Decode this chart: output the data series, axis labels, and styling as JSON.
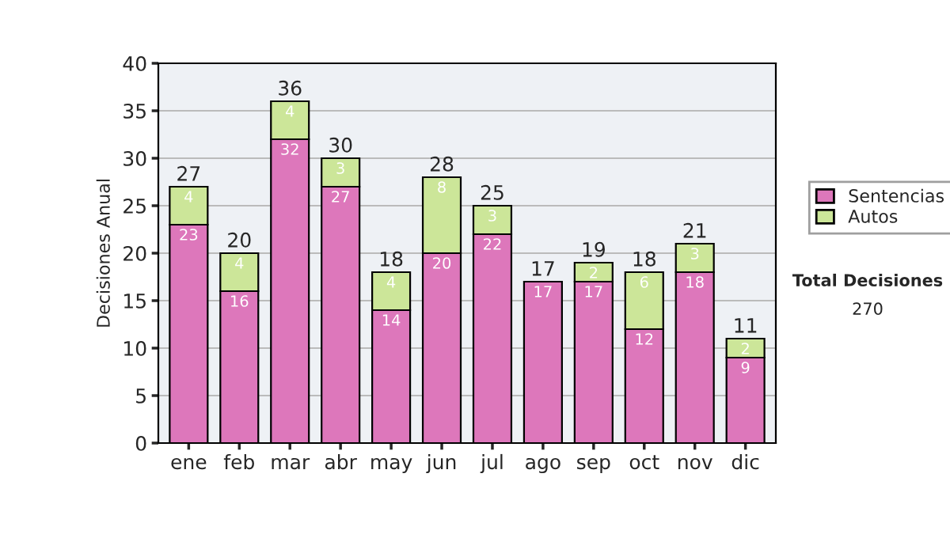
{
  "chart_data": {
    "type": "bar",
    "stacked": true,
    "ylabel": "Decisiones Anual",
    "categories": [
      "ene",
      "feb",
      "mar",
      "abr",
      "may",
      "jun",
      "jul",
      "ago",
      "sep",
      "oct",
      "nov",
      "dic"
    ],
    "series": [
      {
        "name": "Sentencias",
        "color": "#dd77bb",
        "values": [
          23,
          16,
          32,
          27,
          14,
          20,
          22,
          17,
          17,
          12,
          18,
          9
        ],
        "value_labels": [
          "23",
          "16",
          "32",
          "27",
          "14",
          "20",
          "22",
          "17",
          "17",
          "12",
          "18",
          "9"
        ]
      },
      {
        "name": "Autos",
        "color": "#cce699",
        "values": [
          4,
          4,
          4,
          3,
          4,
          8,
          3,
          0,
          2,
          6,
          3,
          2
        ],
        "value_labels": [
          "4",
          "4",
          "4",
          "3",
          "4",
          "8",
          "3",
          null,
          "2",
          "6",
          "3",
          "2"
        ]
      }
    ],
    "totals": [
      "27",
      "20",
      "36",
      "30",
      "18",
      "28",
      "25",
      "17",
      "19",
      "18",
      "21",
      "11"
    ],
    "ylim": [
      0,
      40
    ],
    "yticks": [
      0,
      5,
      10,
      15,
      20,
      25,
      30,
      35,
      40
    ],
    "grid": "y",
    "legend": "right",
    "annotations": [
      "Total Decisiones",
      "270"
    ]
  }
}
